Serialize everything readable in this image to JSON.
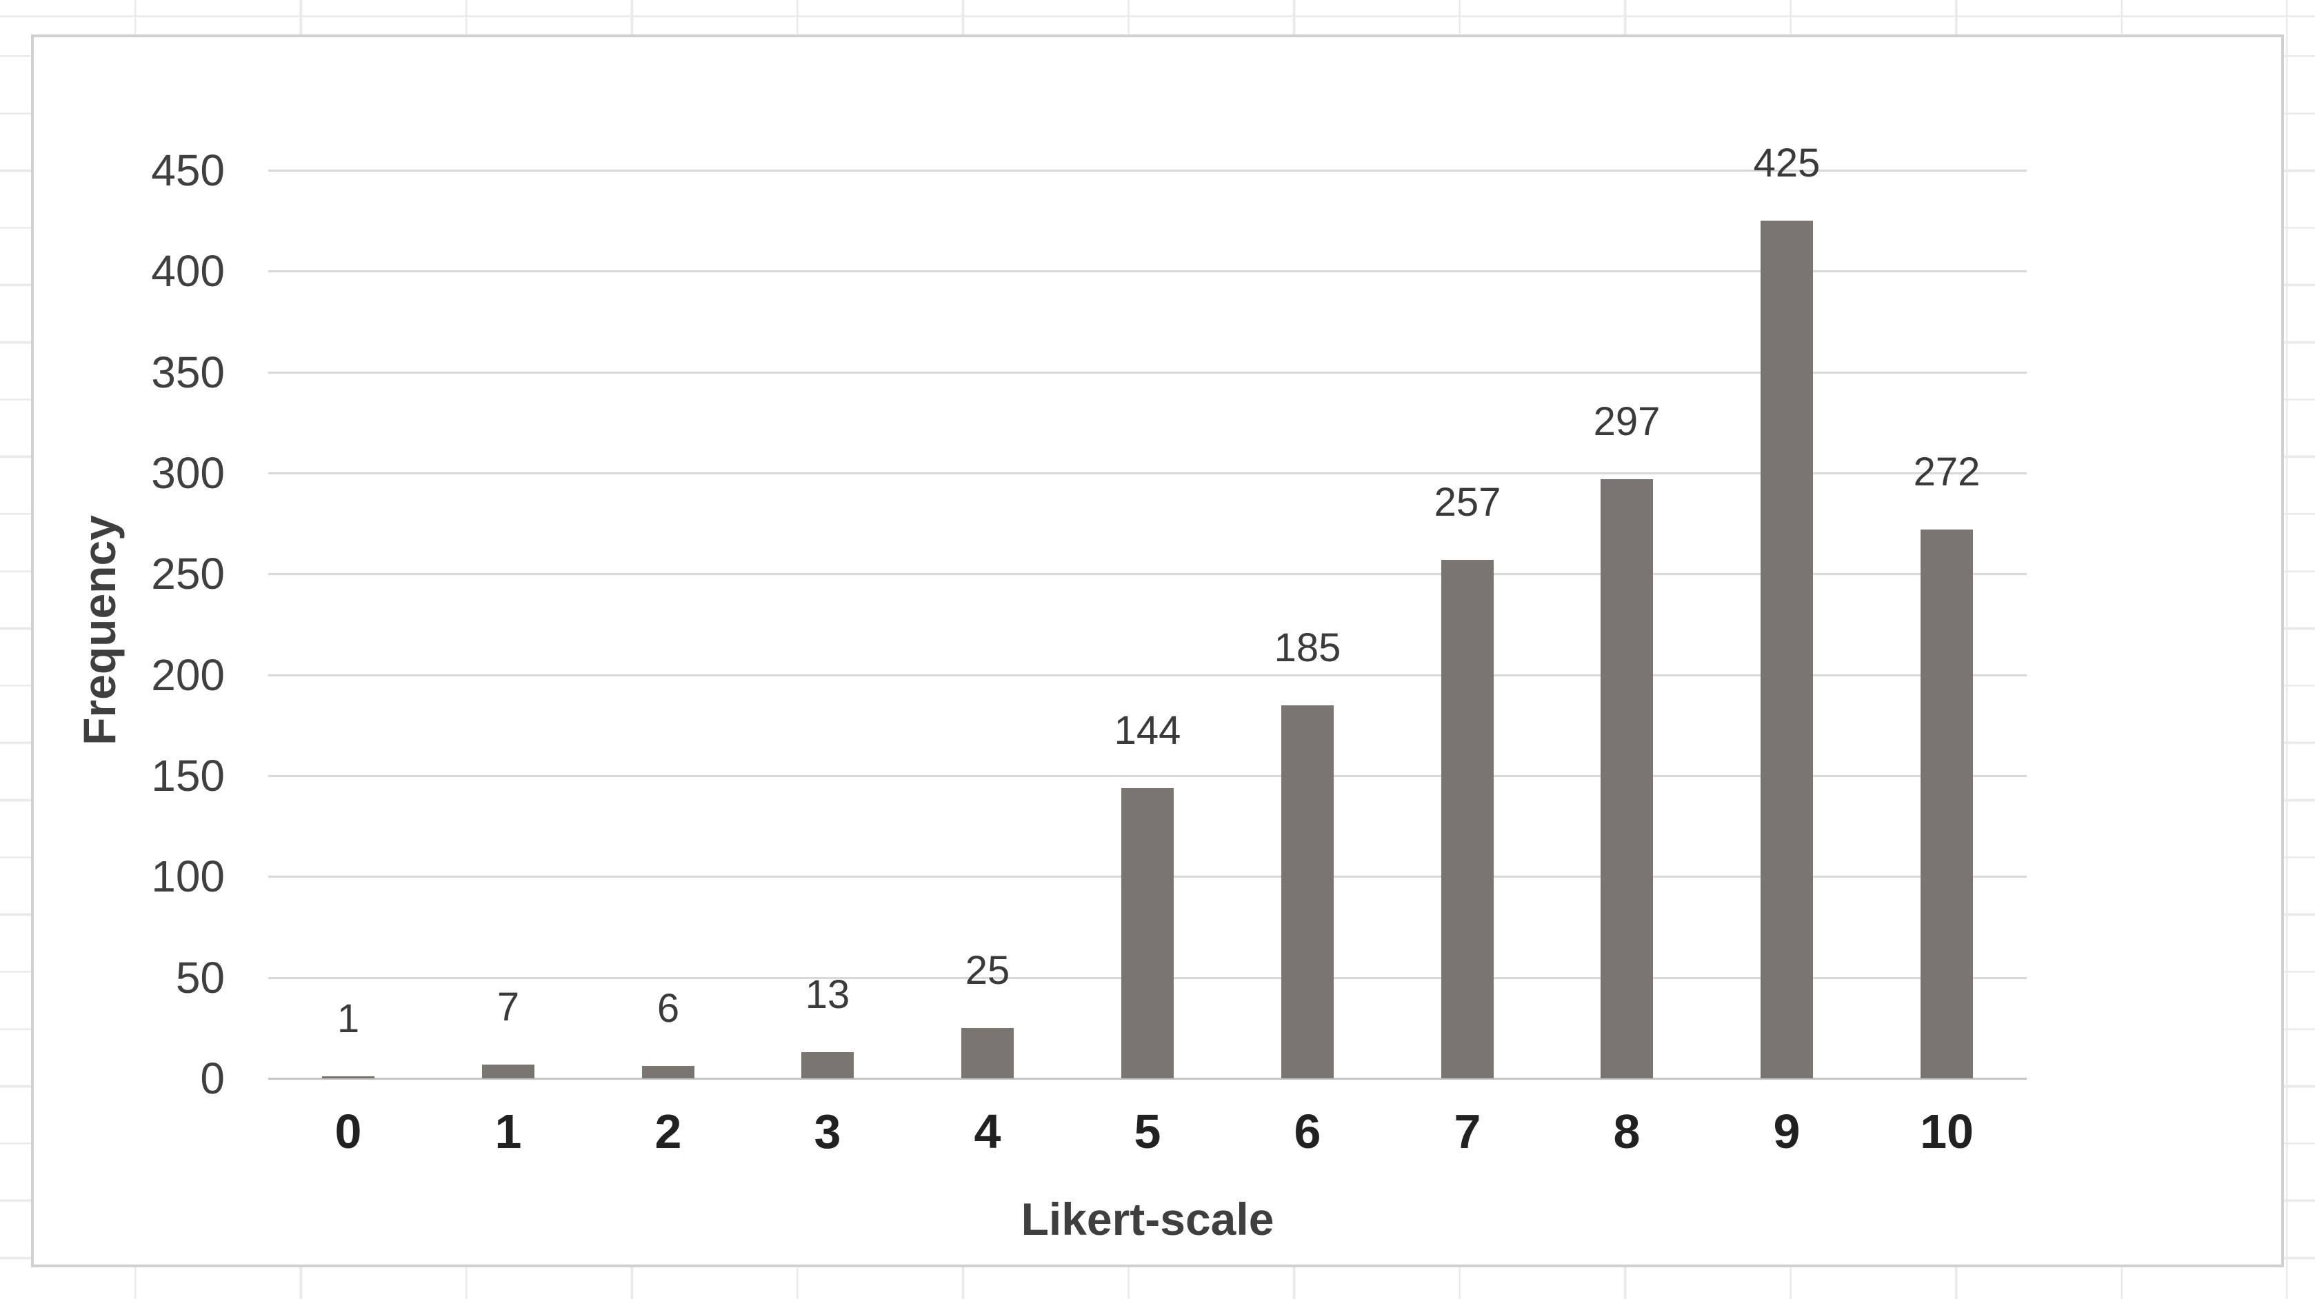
{
  "chart": {
    "y_axis_title": "Frequency",
    "x_axis_title": "Likert-scale"
  },
  "chart_data": {
    "type": "bar",
    "title": "",
    "categories": [
      "0",
      "1",
      "2",
      "3",
      "4",
      "5",
      "6",
      "7",
      "8",
      "9",
      "10"
    ],
    "values": [
      1,
      7,
      6,
      13,
      25,
      144,
      185,
      257,
      297,
      425,
      272
    ],
    "data_labels": [
      "1",
      "7",
      "6",
      "13",
      "25",
      "144",
      "185",
      "257",
      "297",
      "425",
      "272"
    ],
    "xlabel": "Likert-scale",
    "ylabel": "Frequency",
    "ylim": [
      0,
      450
    ],
    "ytick_step": 50,
    "yticks": [
      0,
      50,
      100,
      150,
      200,
      250,
      300,
      350,
      400,
      450
    ],
    "grid": "horizontal",
    "legend": "none",
    "bar_color": "#7A7571",
    "gridline_color": "#D9D8D7",
    "axis_line_color": "#C6C5C4"
  }
}
